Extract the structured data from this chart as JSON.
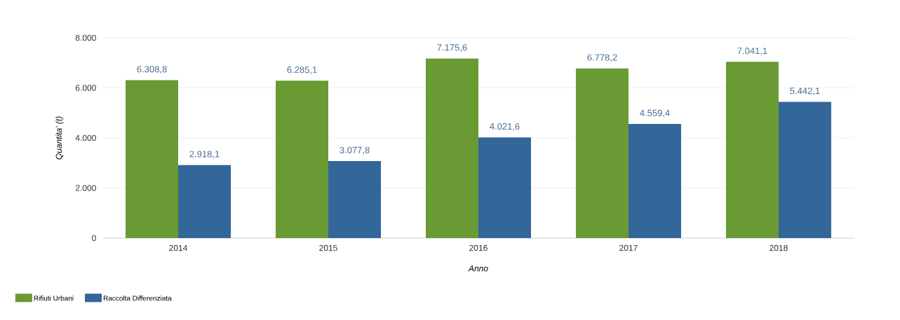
{
  "chart_data": {
    "type": "bar",
    "xlabel": "Anno",
    "ylabel": "Quantita' (t)",
    "categories": [
      "2014",
      "2015",
      "2016",
      "2017",
      "2018"
    ],
    "series": [
      {
        "name": "Rifiuti Urbani",
        "color": "#6a9a33",
        "values": [
          6308.8,
          6285.1,
          7175.6,
          6778.2,
          7041.1
        ],
        "value_labels": [
          "6.308,8",
          "6.285,1",
          "7.175,6",
          "6.778,2",
          "7.041,1"
        ]
      },
      {
        "name": "Raccolta Differenziata",
        "color": "#336699",
        "values": [
          2918.1,
          3077.8,
          4021.6,
          4559.4,
          5442.1
        ],
        "value_labels": [
          "2.918,1",
          "3.077,8",
          "4.021,6",
          "4.559,4",
          "5.442,1"
        ]
      }
    ],
    "ylim": [
      0,
      8000
    ],
    "yticks": [
      0,
      {
        "value": 2000,
        "label": "2.000"
      },
      {
        "value": 4000,
        "label": "4.000"
      },
      {
        "value": 6000,
        "label": "6.000"
      },
      {
        "value": 8000,
        "label": "8.000"
      }
    ],
    "grid": "y",
    "legend": "bottom left"
  }
}
